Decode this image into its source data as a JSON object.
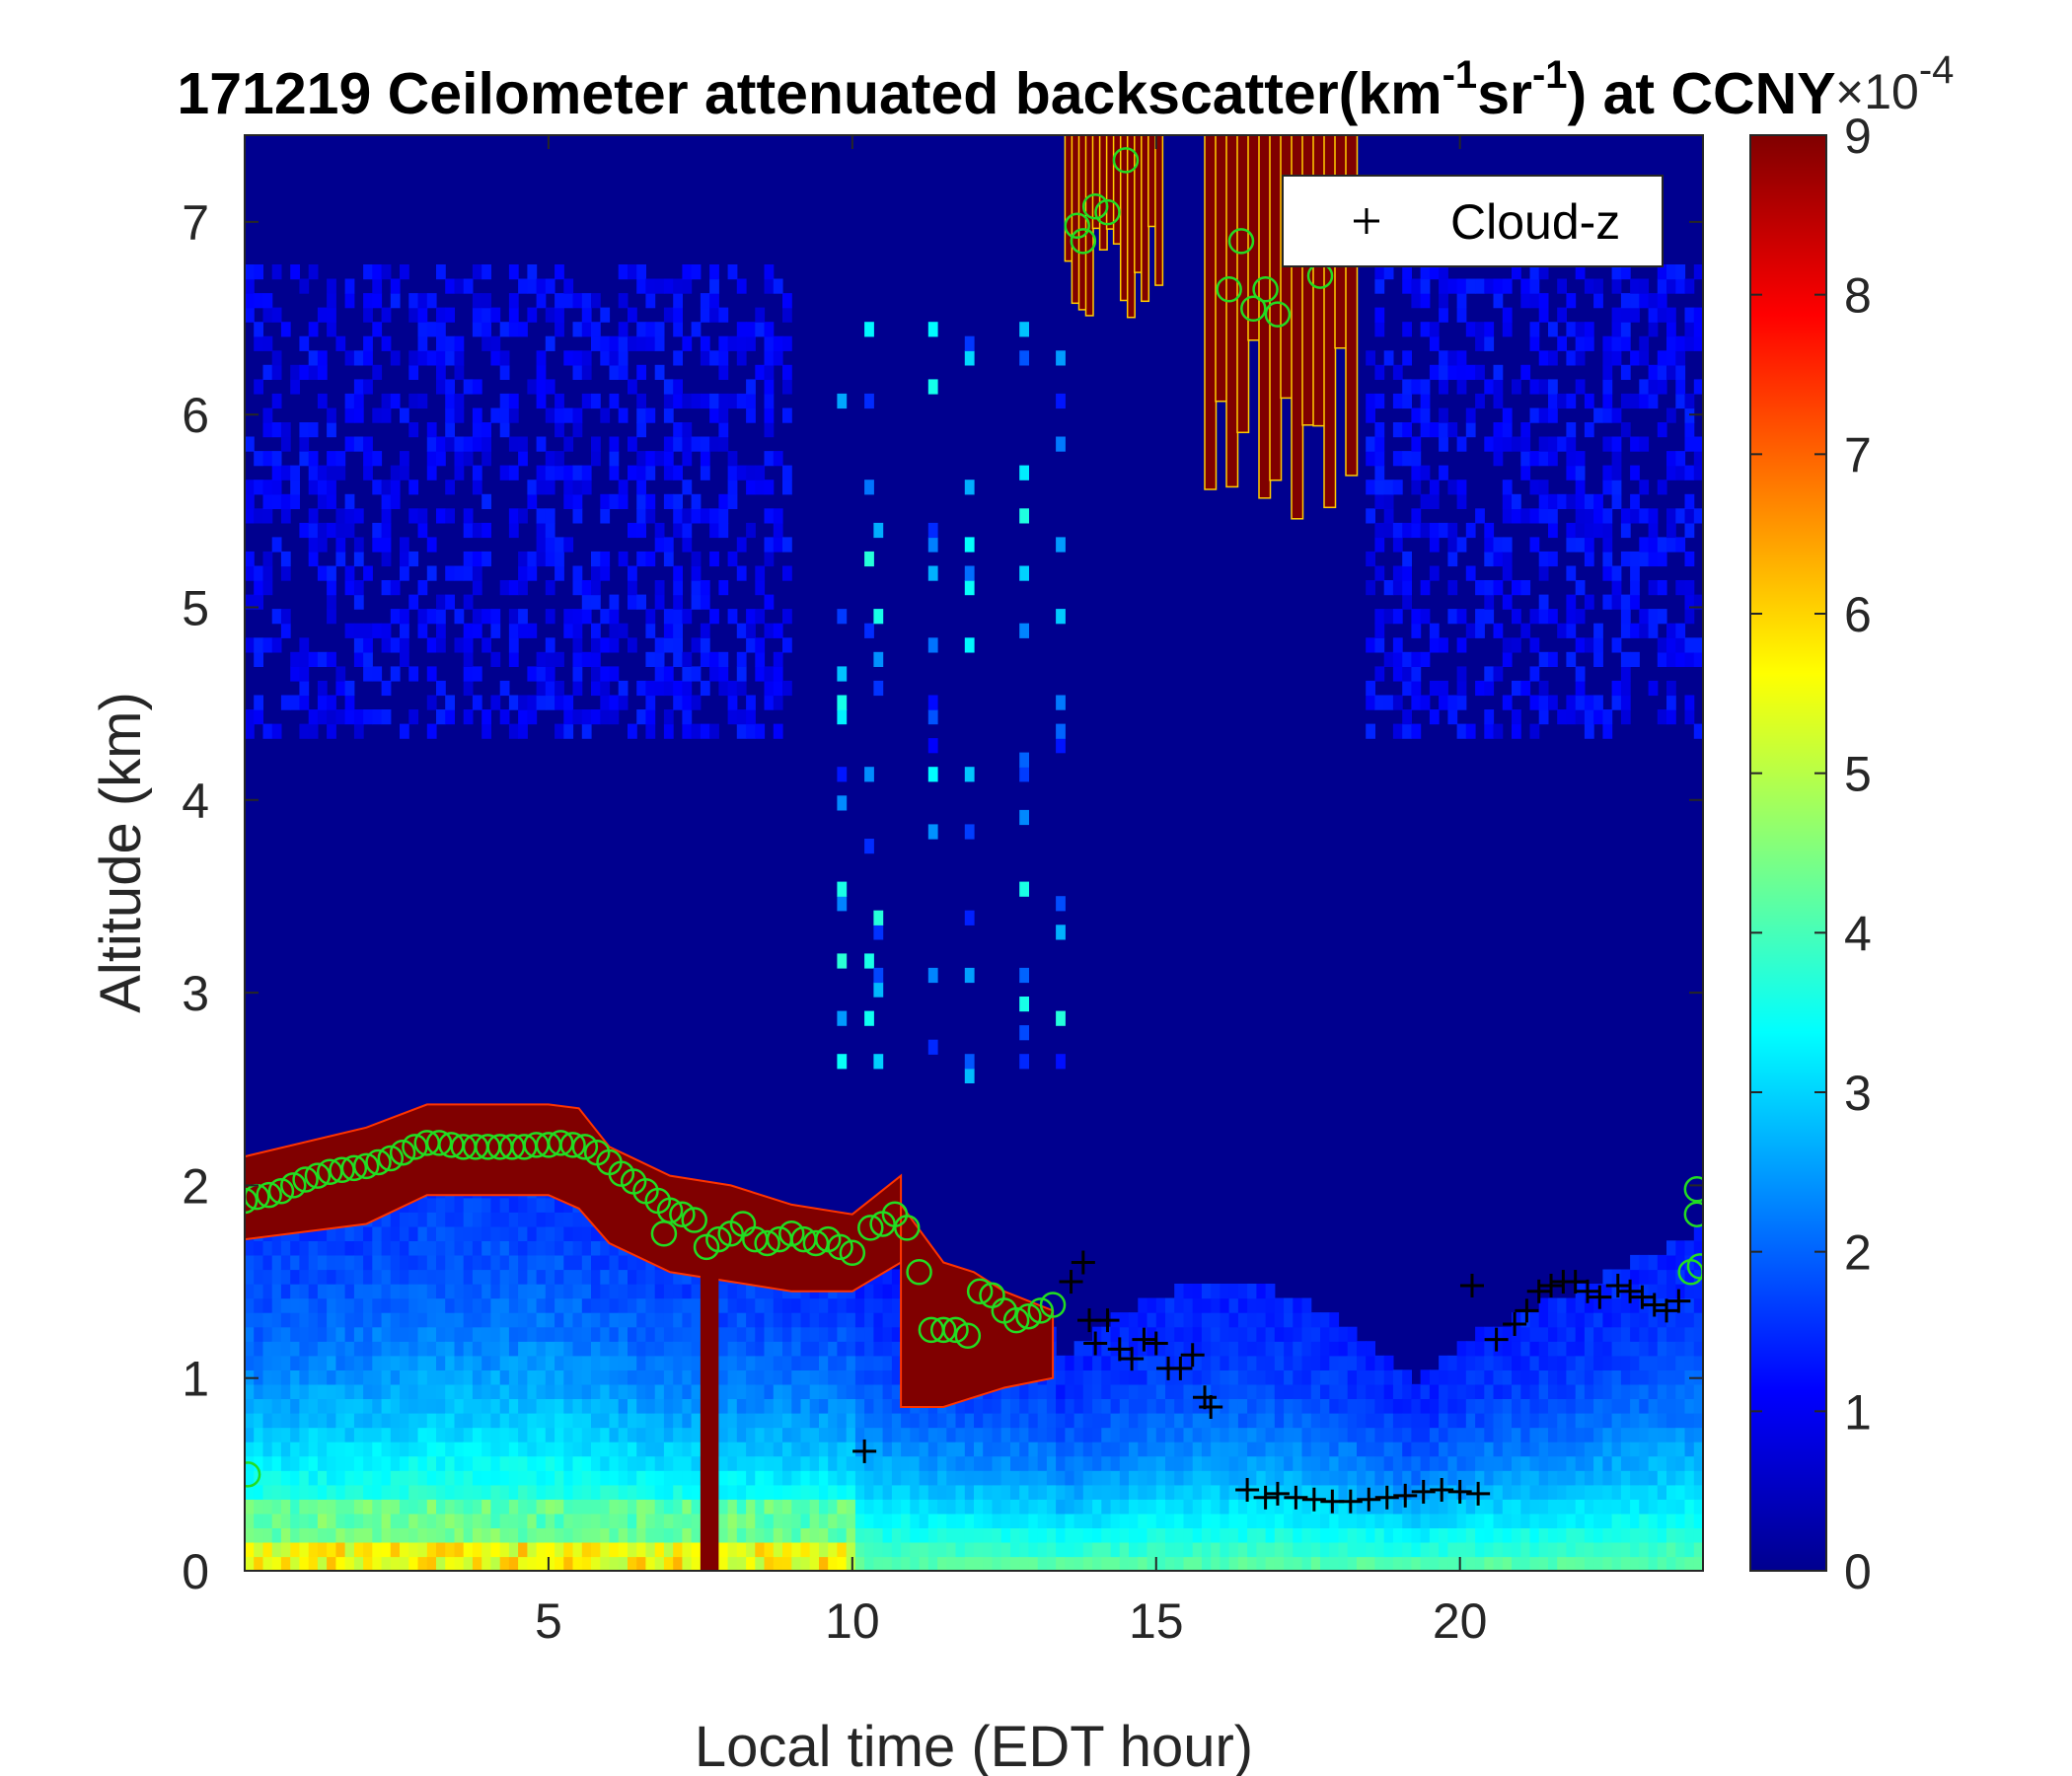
{
  "chart_data": {
    "type": "heatmap",
    "title_parts": {
      "date": "171219",
      "prefix": " Ceilometer attenuated backscatter(km",
      "exp1": "-1",
      "mid": "sr",
      "exp2": "-1",
      "suffix": ") at CCNY"
    },
    "xlabel": "Local time (EDT hour)",
    "ylabel": "Altitude (km)",
    "xlim": [
      0,
      24
    ],
    "ylim": [
      0,
      7.45
    ],
    "xticks": [
      5,
      10,
      15,
      20
    ],
    "xtick_labels": [
      "5",
      "10",
      "15",
      "20"
    ],
    "yticks": [
      0,
      1,
      2,
      3,
      4,
      5,
      6,
      7
    ],
    "ytick_labels": [
      "0",
      "1",
      "2",
      "3",
      "4",
      "5",
      "6",
      "7"
    ],
    "colorbar": {
      "colormap": "jet",
      "clim": [
        0,
        9
      ],
      "ticks": [
        0,
        1,
        2,
        3,
        4,
        5,
        6,
        7,
        8,
        9
      ],
      "tick_labels": [
        "0",
        "1",
        "2",
        "3",
        "4",
        "5",
        "6",
        "7",
        "8",
        "9"
      ],
      "exponent_base": "×10",
      "exponent_power": "-4"
    },
    "legend": {
      "entries": [
        {
          "marker": "+",
          "label": "Cloud-z",
          "color": "#000000"
        }
      ],
      "location": "top-right"
    },
    "features": {
      "aerosol_layer_top_km": [
        [
          0,
          1.95
        ],
        [
          1,
          2.05
        ],
        [
          2,
          2.12
        ],
        [
          3,
          2.28
        ],
        [
          4,
          2.25
        ],
        [
          5,
          2.27
        ],
        [
          6,
          2.0
        ],
        [
          7,
          1.85
        ],
        [
          8,
          1.75
        ],
        [
          9,
          1.7
        ],
        [
          10,
          1.65
        ],
        [
          11,
          1.5
        ],
        [
          12,
          1.35
        ],
        [
          13,
          1.3
        ]
      ],
      "dense_cloud_bands_km": [
        {
          "x": [
            0,
            2,
            3,
            5,
            5.5,
            6,
            7,
            8,
            9,
            10,
            10.8
          ],
          "top": [
            2.15,
            2.3,
            2.42,
            2.42,
            2.4,
            2.2,
            2.05,
            2.0,
            1.9,
            1.85,
            2.05
          ],
          "bottom": [
            1.72,
            1.8,
            1.95,
            1.95,
            1.88,
            1.7,
            1.55,
            1.5,
            1.45,
            1.45,
            1.6
          ]
        },
        {
          "x": [
            10.8,
            11.5,
            12,
            12.5,
            13.3
          ],
          "top": [
            1.9,
            1.6,
            1.55,
            1.45,
            1.35
          ],
          "bottom": [
            0.85,
            0.85,
            0.9,
            0.95,
            1.0
          ]
        }
      ],
      "upper_cloud_blocks_km": [
        {
          "x0": 13.5,
          "x1": 15.1,
          "bottom": 6.4,
          "top": 7.45
        },
        {
          "x0": 15.8,
          "x1": 18.3,
          "bottom": 5.45,
          "top": 7.45
        }
      ]
    },
    "series": [
      {
        "name": "Cloud-z",
        "marker": "+",
        "color": "#000000",
        "points": [
          [
            10.2,
            0.62
          ],
          [
            13.6,
            1.5
          ],
          [
            13.8,
            1.6
          ],
          [
            13.9,
            1.3
          ],
          [
            14.0,
            1.18
          ],
          [
            14.2,
            1.3
          ],
          [
            14.4,
            1.15
          ],
          [
            14.6,
            1.1
          ],
          [
            14.8,
            1.2
          ],
          [
            15.0,
            1.18
          ],
          [
            15.2,
            1.05
          ],
          [
            15.4,
            1.05
          ],
          [
            15.6,
            1.12
          ],
          [
            15.8,
            0.9
          ],
          [
            15.9,
            0.85
          ],
          [
            16.5,
            0.42
          ],
          [
            16.8,
            0.38
          ],
          [
            17.0,
            0.4
          ],
          [
            17.3,
            0.38
          ],
          [
            17.6,
            0.37
          ],
          [
            17.9,
            0.36
          ],
          [
            18.2,
            0.36
          ],
          [
            18.5,
            0.37
          ],
          [
            18.8,
            0.38
          ],
          [
            19.1,
            0.39
          ],
          [
            19.4,
            0.41
          ],
          [
            19.7,
            0.42
          ],
          [
            20.0,
            0.41
          ],
          [
            20.3,
            0.4
          ],
          [
            20.6,
            1.2
          ],
          [
            20.9,
            1.28
          ],
          [
            21.1,
            1.35
          ],
          [
            21.3,
            1.45
          ],
          [
            21.5,
            1.48
          ],
          [
            21.7,
            1.5
          ],
          [
            21.9,
            1.5
          ],
          [
            22.1,
            1.45
          ],
          [
            22.3,
            1.42
          ],
          [
            22.6,
            1.48
          ],
          [
            22.8,
            1.45
          ],
          [
            23.0,
            1.42
          ],
          [
            23.2,
            1.38
          ],
          [
            23.4,
            1.35
          ],
          [
            23.6,
            1.4
          ],
          [
            20.2,
            1.48
          ]
        ]
      },
      {
        "marker": "o",
        "color": "#22dd22",
        "points": [
          [
            0.0,
            1.92
          ],
          [
            0.2,
            1.94
          ],
          [
            0.4,
            1.95
          ],
          [
            0.6,
            1.97
          ],
          [
            0.8,
            2.0
          ],
          [
            1.0,
            2.03
          ],
          [
            1.2,
            2.05
          ],
          [
            1.4,
            2.07
          ],
          [
            1.6,
            2.08
          ],
          [
            1.8,
            2.09
          ],
          [
            2.0,
            2.1
          ],
          [
            2.2,
            2.12
          ],
          [
            2.4,
            2.14
          ],
          [
            2.6,
            2.17
          ],
          [
            2.8,
            2.2
          ],
          [
            3.0,
            2.22
          ],
          [
            3.2,
            2.22
          ],
          [
            3.4,
            2.21
          ],
          [
            3.6,
            2.2
          ],
          [
            3.8,
            2.2
          ],
          [
            4.0,
            2.2
          ],
          [
            4.2,
            2.2
          ],
          [
            4.4,
            2.2
          ],
          [
            4.6,
            2.2
          ],
          [
            4.8,
            2.21
          ],
          [
            5.0,
            2.21
          ],
          [
            5.2,
            2.22
          ],
          [
            5.4,
            2.21
          ],
          [
            5.6,
            2.2
          ],
          [
            5.8,
            2.17
          ],
          [
            6.0,
            2.12
          ],
          [
            6.2,
            2.06
          ],
          [
            6.4,
            2.02
          ],
          [
            6.6,
            1.97
          ],
          [
            6.8,
            1.92
          ],
          [
            7.0,
            1.87
          ],
          [
            7.2,
            1.85
          ],
          [
            7.4,
            1.82
          ],
          [
            6.9,
            1.75
          ],
          [
            7.6,
            1.68
          ],
          [
            7.8,
            1.72
          ],
          [
            8.0,
            1.75
          ],
          [
            8.2,
            1.8
          ],
          [
            8.4,
            1.72
          ],
          [
            8.6,
            1.7
          ],
          [
            8.8,
            1.72
          ],
          [
            9.0,
            1.75
          ],
          [
            9.2,
            1.72
          ],
          [
            9.4,
            1.7
          ],
          [
            9.6,
            1.72
          ],
          [
            9.8,
            1.68
          ],
          [
            10.0,
            1.65
          ],
          [
            10.3,
            1.78
          ],
          [
            10.5,
            1.8
          ],
          [
            10.7,
            1.85
          ],
          [
            10.9,
            1.78
          ],
          [
            11.1,
            1.55
          ],
          [
            11.3,
            1.25
          ],
          [
            11.5,
            1.25
          ],
          [
            11.7,
            1.25
          ],
          [
            11.9,
            1.22
          ],
          [
            12.1,
            1.45
          ],
          [
            12.3,
            1.43
          ],
          [
            12.5,
            1.35
          ],
          [
            12.7,
            1.3
          ],
          [
            12.9,
            1.32
          ],
          [
            13.1,
            1.35
          ],
          [
            13.3,
            1.38
          ],
          [
            13.7,
            6.98
          ],
          [
            13.8,
            6.9
          ],
          [
            14.0,
            7.08
          ],
          [
            14.2,
            7.05
          ],
          [
            14.5,
            7.32
          ],
          [
            16.2,
            6.65
          ],
          [
            16.4,
            6.9
          ],
          [
            16.6,
            6.55
          ],
          [
            16.8,
            6.65
          ],
          [
            17.0,
            6.52
          ],
          [
            17.3,
            6.95
          ],
          [
            17.7,
            6.72
          ],
          [
            0.05,
            0.5
          ],
          [
            23.9,
            1.85
          ],
          [
            23.8,
            1.55
          ],
          [
            23.95,
            1.58
          ],
          [
            23.9,
            1.98
          ]
        ]
      }
    ]
  }
}
